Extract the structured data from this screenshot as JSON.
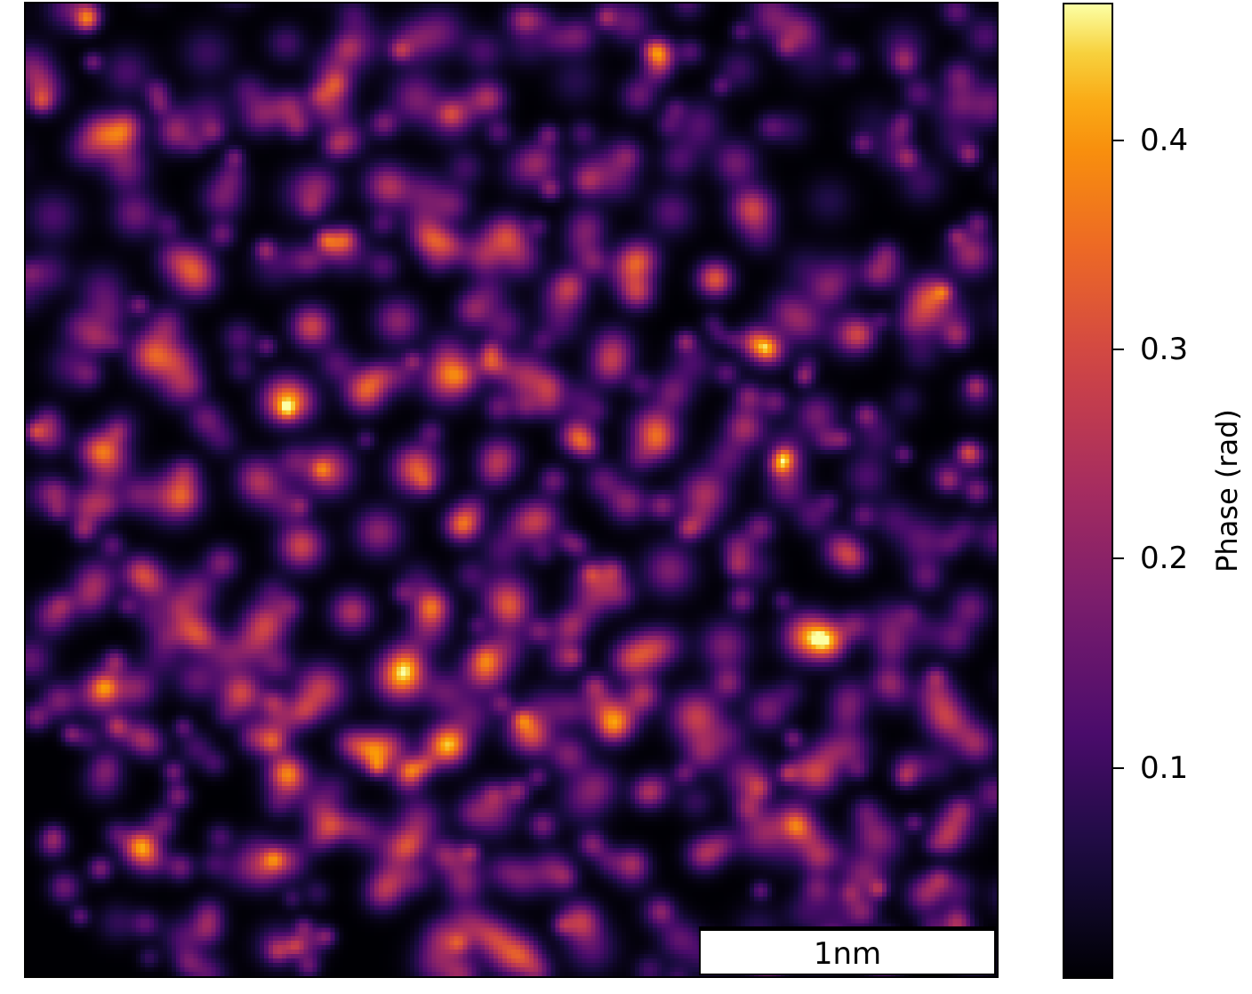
{
  "chart_data": {
    "type": "heatmap",
    "title": "",
    "colormap": "inferno",
    "colorbar": {
      "label": "Phase (rad)",
      "range": [
        0.0,
        0.465
      ],
      "ticks": [
        0.1,
        0.2,
        0.3,
        0.4
      ],
      "tick_labels": [
        "0.1",
        "0.2",
        "0.3",
        "0.4"
      ]
    },
    "scalebar": {
      "label": "1nm",
      "location": "bottom-right"
    },
    "axes_visible": false
  }
}
